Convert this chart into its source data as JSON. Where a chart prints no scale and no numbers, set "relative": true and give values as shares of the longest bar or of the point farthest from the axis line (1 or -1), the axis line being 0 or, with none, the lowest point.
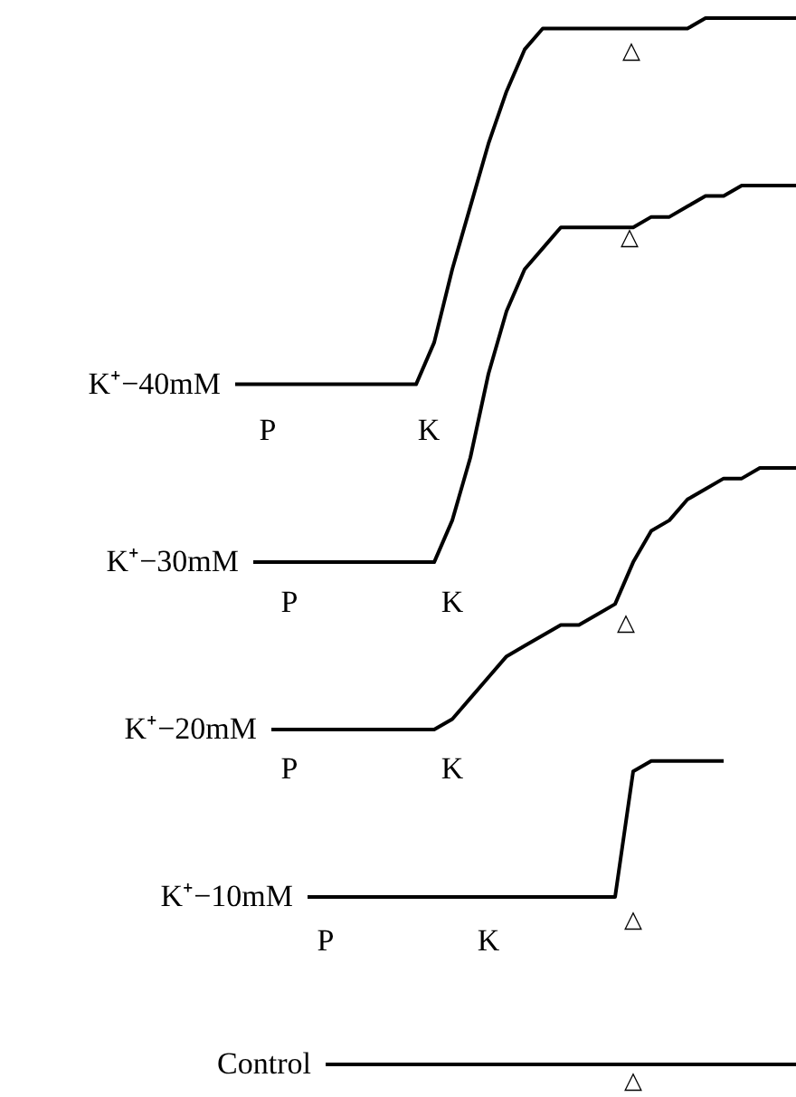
{
  "chart_data": {
    "type": "line",
    "relative": true,
    "marker": "none",
    "line_style": "solid",
    "tick_labels": false,
    "categories": [
      null,
      null,
      null,
      null,
      null,
      null,
      null,
      null,
      null,
      null,
      null,
      null,
      null,
      null,
      null,
      null,
      null,
      null,
      null,
      null,
      null,
      null,
      null,
      null,
      null,
      null,
      null,
      null,
      null,
      null,
      null,
      null
    ],
    "series": [
      {
        "name": "K⁺−40mM",
        "color": "#000000",
        "values": [
          0.65,
          0.65,
          0.65,
          0.65,
          0.65,
          0.65,
          0.65,
          0.65,
          0.65,
          0.65,
          0.65,
          0.69,
          0.76,
          0.82,
          0.88,
          0.93,
          0.97,
          0.99,
          0.99,
          0.99,
          0.99,
          0.99,
          0.99,
          0.99,
          0.99,
          0.99,
          1.0,
          1.0,
          1.0,
          1.0,
          1.0,
          1.0
        ]
      },
      {
        "name": "K⁺−30mM",
        "color": "#000000",
        "values": [
          null,
          0.48,
          0.48,
          0.48,
          0.48,
          0.48,
          0.48,
          0.48,
          0.48,
          0.48,
          0.48,
          0.48,
          0.52,
          0.58,
          0.66,
          0.72,
          0.76,
          0.78,
          0.8,
          0.8,
          0.8,
          0.8,
          0.8,
          0.81,
          0.81,
          0.82,
          0.83,
          0.83,
          0.84,
          0.84,
          0.84,
          0.84
        ]
      },
      {
        "name": "K⁺−20mM",
        "color": "#000000",
        "values": [
          null,
          null,
          0.32,
          0.32,
          0.32,
          0.32,
          0.32,
          0.32,
          0.32,
          0.32,
          0.32,
          0.32,
          0.33,
          0.35,
          0.37,
          0.39,
          0.4,
          0.41,
          0.42,
          0.42,
          0.43,
          0.44,
          0.48,
          0.51,
          0.52,
          0.54,
          0.55,
          0.56,
          0.56,
          0.57,
          0.57,
          0.57
        ]
      },
      {
        "name": "K⁺−10mM",
        "color": "#000000",
        "values": [
          null,
          null,
          null,
          null,
          0.16,
          0.16,
          0.16,
          0.16,
          0.16,
          0.16,
          0.16,
          0.16,
          0.16,
          0.16,
          0.16,
          0.16,
          0.16,
          0.16,
          0.16,
          0.16,
          0.16,
          0.16,
          0.28,
          0.29,
          0.29,
          0.29,
          0.29,
          0.29,
          null,
          null,
          null,
          null
        ]
      },
      {
        "name": "Control",
        "color": "#000000",
        "values": [
          null,
          null,
          null,
          null,
          null,
          0.0,
          0.0,
          0.0,
          0.0,
          0.0,
          0.0,
          0.0,
          0.0,
          0.0,
          0.0,
          0.0,
          0.0,
          0.0,
          0.0,
          0.0,
          0.0,
          0.0,
          0.0,
          0.0,
          0.0,
          0.0,
          0.0,
          0.0,
          0.0,
          0.0,
          0.0,
          0.0
        ]
      }
    ],
    "annotations": [
      "P",
      "K",
      "△",
      "P",
      "K",
      "△",
      "P",
      "K",
      "△",
      "P",
      "K",
      "△",
      "△"
    ]
  }
}
